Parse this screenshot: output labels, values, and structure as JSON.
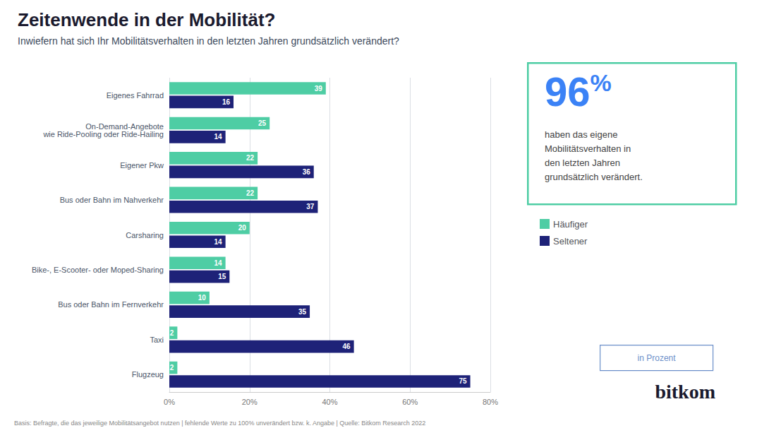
{
  "chart_data": {
    "type": "bar",
    "orientation": "horizontal",
    "title": "Zeitenwende in der Mobilität?",
    "subtitle": "Inwiefern hat sich Ihr Mobilitätsverhalten in den letzten Jahren grundsätzlich verändert?",
    "categories": [
      "Eigenes Fahrrad",
      "On-Demand-Angebote\nwie Ride-Pooling oder Ride-Hailing",
      "Eigener Pkw",
      "Bus oder Bahn im Nahverkehr",
      "Carsharing",
      "Bike-, E-Scooter- oder Moped-Sharing",
      "Bus oder Bahn im Fernverkehr",
      "Taxi",
      "Flugzeug"
    ],
    "series": [
      {
        "name": "Häufiger",
        "color": "#4ecda4",
        "values": [
          39,
          25,
          22,
          22,
          20,
          14,
          10,
          2,
          2
        ]
      },
      {
        "name": "Seltener",
        "color": "#1e2278",
        "values": [
          16,
          14,
          36,
          37,
          14,
          15,
          35,
          46,
          75
        ]
      }
    ],
    "xlim": [
      0,
      80
    ],
    "xticks": [
      {
        "value": 0,
        "label": "0%"
      },
      {
        "value": 20,
        "label": "20%"
      },
      {
        "value": 40,
        "label": "40%"
      },
      {
        "value": 60,
        "label": "60%"
      },
      {
        "value": 80,
        "label": "80%"
      }
    ],
    "grid": true,
    "data_labels": true,
    "legend": "right",
    "annotations": [
      "96",
      "%",
      "haben das eigene\nMobilitätsverhalten in\nden letzten Jahren\ngrundsätzlich verändert.",
      "in Prozent",
      "bitkom",
      "Basis: Befragte, die das jeweilige Mobilitätsangebot nutzen | fehlende Werte zu 100% unverändert bzw. k. Angabe | Quelle: Bitkom Research 2022"
    ]
  }
}
